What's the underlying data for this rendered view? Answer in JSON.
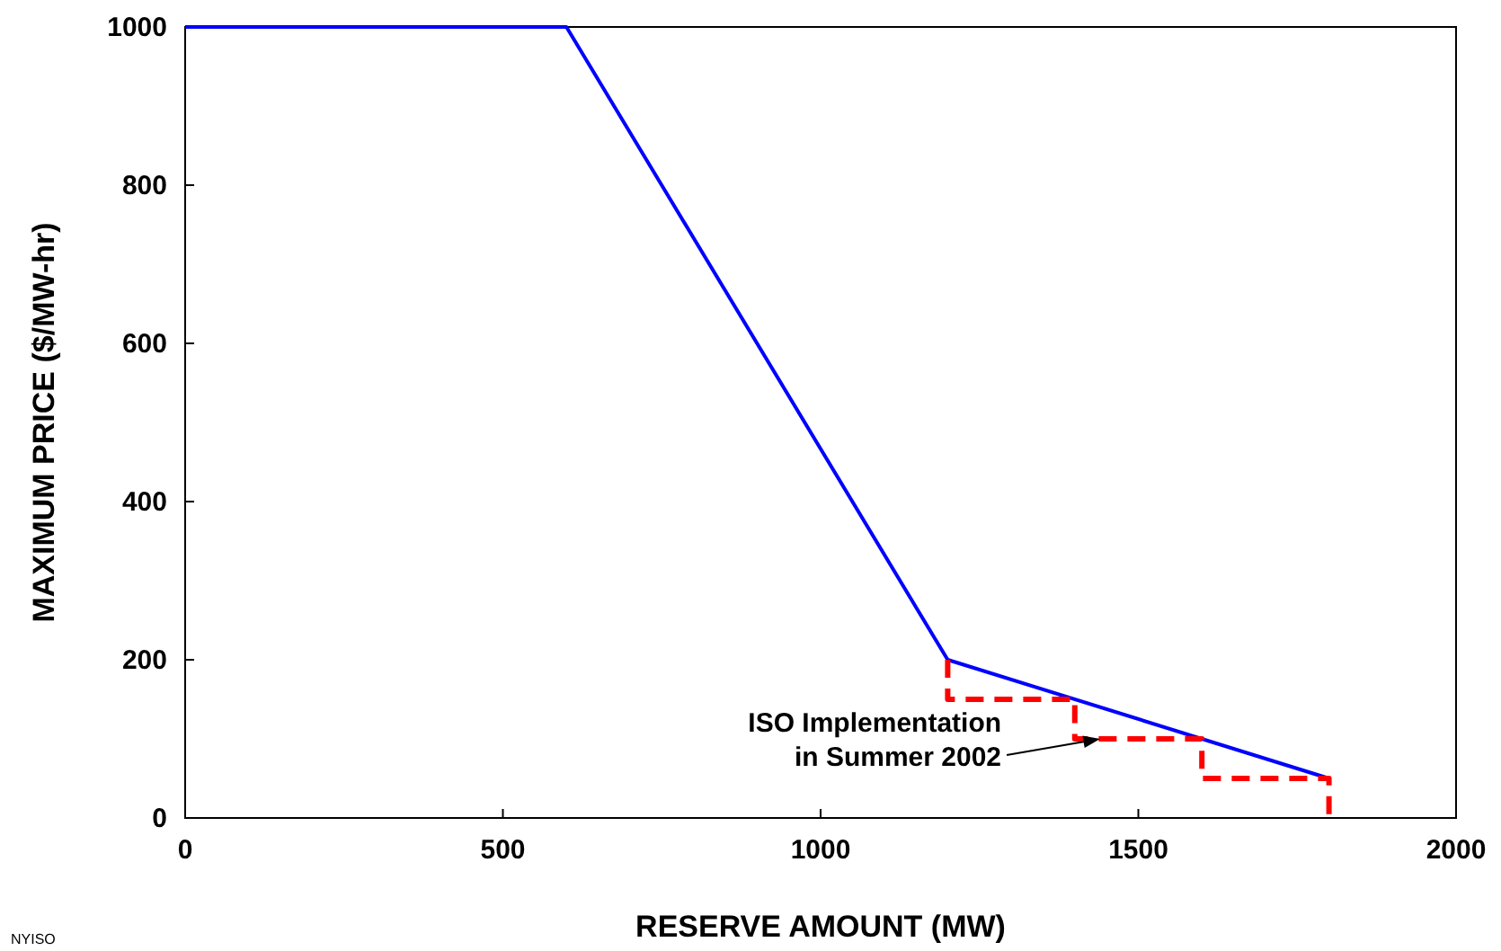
{
  "chart_data": {
    "type": "line",
    "xlabel": "RESERVE AMOUNT (MW)",
    "ylabel": "MAXIMUM PRICE ($/MW-hr)",
    "xlim": [
      0,
      2000
    ],
    "xticks": [
      0,
      500,
      1000,
      1500,
      2000
    ],
    "ylim": [
      0,
      1000
    ],
    "yticks": [
      0,
      200,
      400,
      600,
      800,
      1000
    ],
    "grid": false,
    "marker": "none",
    "series": [
      {
        "color": "#0000ff",
        "x": [
          0,
          600,
          1200,
          1800
        ],
        "values": [
          1000,
          1000,
          200,
          50
        ],
        "line_style": "solid"
      },
      {
        "color": "#ff0000",
        "x": [
          1200,
          1200,
          1400,
          1400,
          1600,
          1600,
          1800,
          1800
        ],
        "values": [
          200,
          150,
          150,
          100,
          100,
          50,
          50,
          0
        ],
        "line_style": "dashed"
      }
    ],
    "annotations": [
      {
        "text": "ISO Implementation\nin Summer 2002",
        "x": 1440,
        "y": 100
      },
      "NYISO"
    ]
  }
}
